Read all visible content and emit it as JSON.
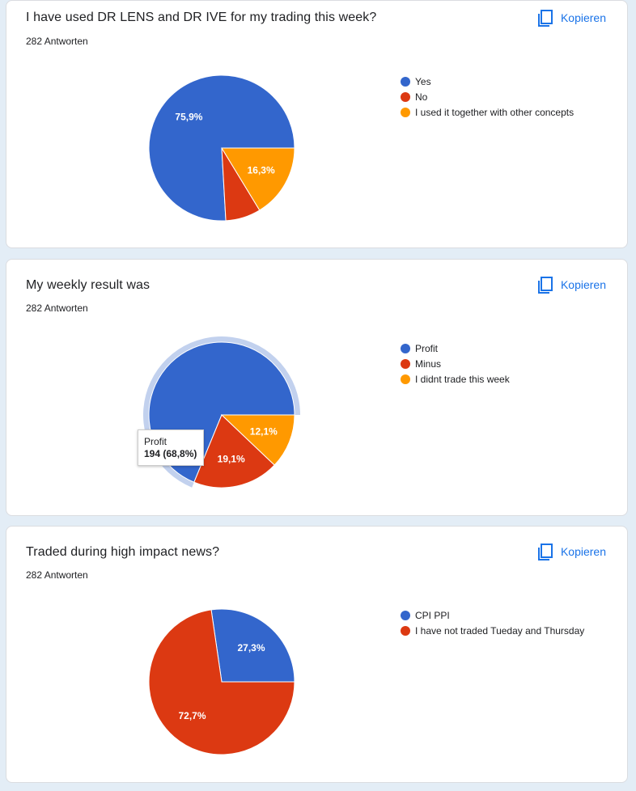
{
  "copy_label": "Kopieren",
  "tooltip": {
    "label": "Profit",
    "value": "194 (68,8%)"
  },
  "chart_data": [
    {
      "type": "pie",
      "title": "I have used DR LENS and DR IVE for my trading this week?",
      "responses": "282 Antworten",
      "labels": [
        "Yes",
        "No",
        "I used it together with other concepts"
      ],
      "values": [
        75.9,
        7.8,
        16.3
      ],
      "value_labels": [
        "75,9%",
        "",
        "16,3%"
      ],
      "colors": [
        "#3366cc",
        "#dc3912",
        "#ff9900"
      ]
    },
    {
      "type": "pie",
      "title": "My weekly result was",
      "responses": "282 Antworten",
      "labels": [
        "Profit",
        "Minus",
        "I didnt trade this week"
      ],
      "values": [
        68.8,
        19.1,
        12.1
      ],
      "value_labels": [
        "",
        "19,1%",
        "12,1%"
      ],
      "colors": [
        "#3366cc",
        "#dc3912",
        "#ff9900"
      ],
      "highlighted": "Profit"
    },
    {
      "type": "pie",
      "title": "Traded during high impact news?",
      "responses": "282 Antworten",
      "labels": [
        "CPI PPI",
        "I have not traded Tueday and Thursday"
      ],
      "values": [
        27.3,
        72.7
      ],
      "value_labels": [
        "27,3%",
        "72,7%"
      ],
      "colors": [
        "#3366cc",
        "#dc3912"
      ]
    }
  ]
}
